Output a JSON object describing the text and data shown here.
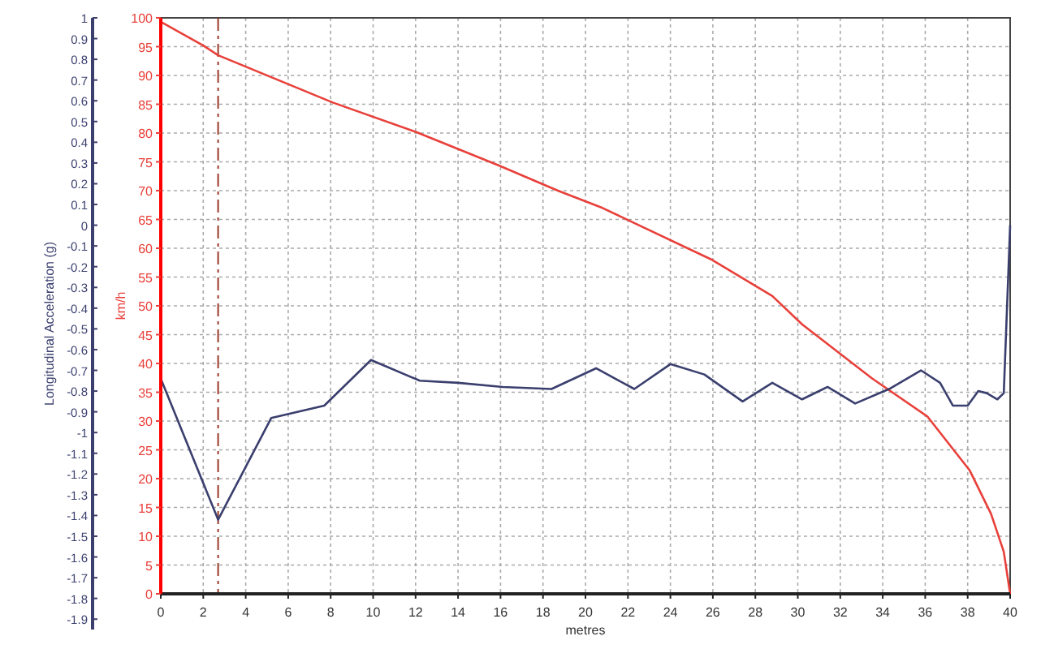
{
  "chart_data": {
    "type": "line",
    "xlabel": "metres",
    "ylabel": "km/h",
    "y2label": "Longitudinal Acceleration (g)",
    "xlim": [
      0,
      40
    ],
    "xticks": [
      0,
      2,
      4,
      6,
      8,
      10,
      12,
      14,
      16,
      18,
      20,
      22,
      24,
      26,
      28,
      30,
      32,
      34,
      36,
      38,
      40
    ],
    "ylim": [
      0,
      100
    ],
    "yticks": [
      0,
      5,
      10,
      15,
      20,
      25,
      30,
      35,
      40,
      45,
      50,
      55,
      60,
      65,
      70,
      75,
      80,
      85,
      90,
      95,
      100
    ],
    "y2lim": [
      -1.95,
      1
    ],
    "y2ticks": [
      1,
      0.9,
      0.8,
      0.7,
      0.6,
      0.5,
      0.4,
      0.3,
      0.2,
      0.1,
      0,
      -0.1,
      -0.2,
      -0.3,
      -0.4,
      -0.5,
      -0.6,
      -0.7,
      -0.8,
      -0.9,
      -1,
      -1.1,
      -1.2,
      -1.3,
      -1.4,
      -1.5,
      -1.6,
      -1.7,
      -1.8,
      -1.9
    ],
    "grid": true,
    "marker": "none",
    "series": [
      {
        "color": "#e8403a",
        "x": [
          0,
          2,
          2.7,
          8.1,
          12,
          15.9,
          18.7,
          20.8,
          25.9,
          28.8,
          30.2,
          33.5,
          36.1,
          38.1,
          39.1,
          39.7,
          40
        ],
        "values": [
          99.3,
          95.2,
          93.5,
          85.3,
          80.2,
          74.4,
          70,
          67,
          58.1,
          51.7,
          46.8,
          37.4,
          30.8,
          21.4,
          13.9,
          7.3,
          0
        ]
      },
      {
        "color": "#3a3f6e",
        "axis": "y2",
        "x": [
          0,
          2.7,
          5.2,
          7.7,
          9.9,
          12.2,
          14,
          16.1,
          18.4,
          20.5,
          22.3,
          24,
          25.6,
          27.4,
          28.8,
          30.2,
          31.4,
          32.7,
          34.3,
          35.8,
          36.7,
          37.3,
          38,
          38.5,
          38.9,
          39.4,
          39.7,
          40
        ],
        "values": [
          -0.74,
          -1.42,
          -0.93,
          -0.87,
          -0.65,
          -0.75,
          -0.76,
          -0.78,
          -0.79,
          -0.69,
          -0.79,
          -0.67,
          -0.72,
          -0.85,
          -0.76,
          -0.84,
          -0.78,
          -0.86,
          -0.79,
          -0.7,
          -0.76,
          -0.87,
          -0.87,
          -0.8,
          -0.81,
          -0.84,
          -0.81,
          0
        ]
      }
    ],
    "ref_lines": [
      {
        "axis": "x",
        "value": 2.7,
        "color": "#9a3a2a",
        "line_style": "dashdot"
      }
    ]
  }
}
